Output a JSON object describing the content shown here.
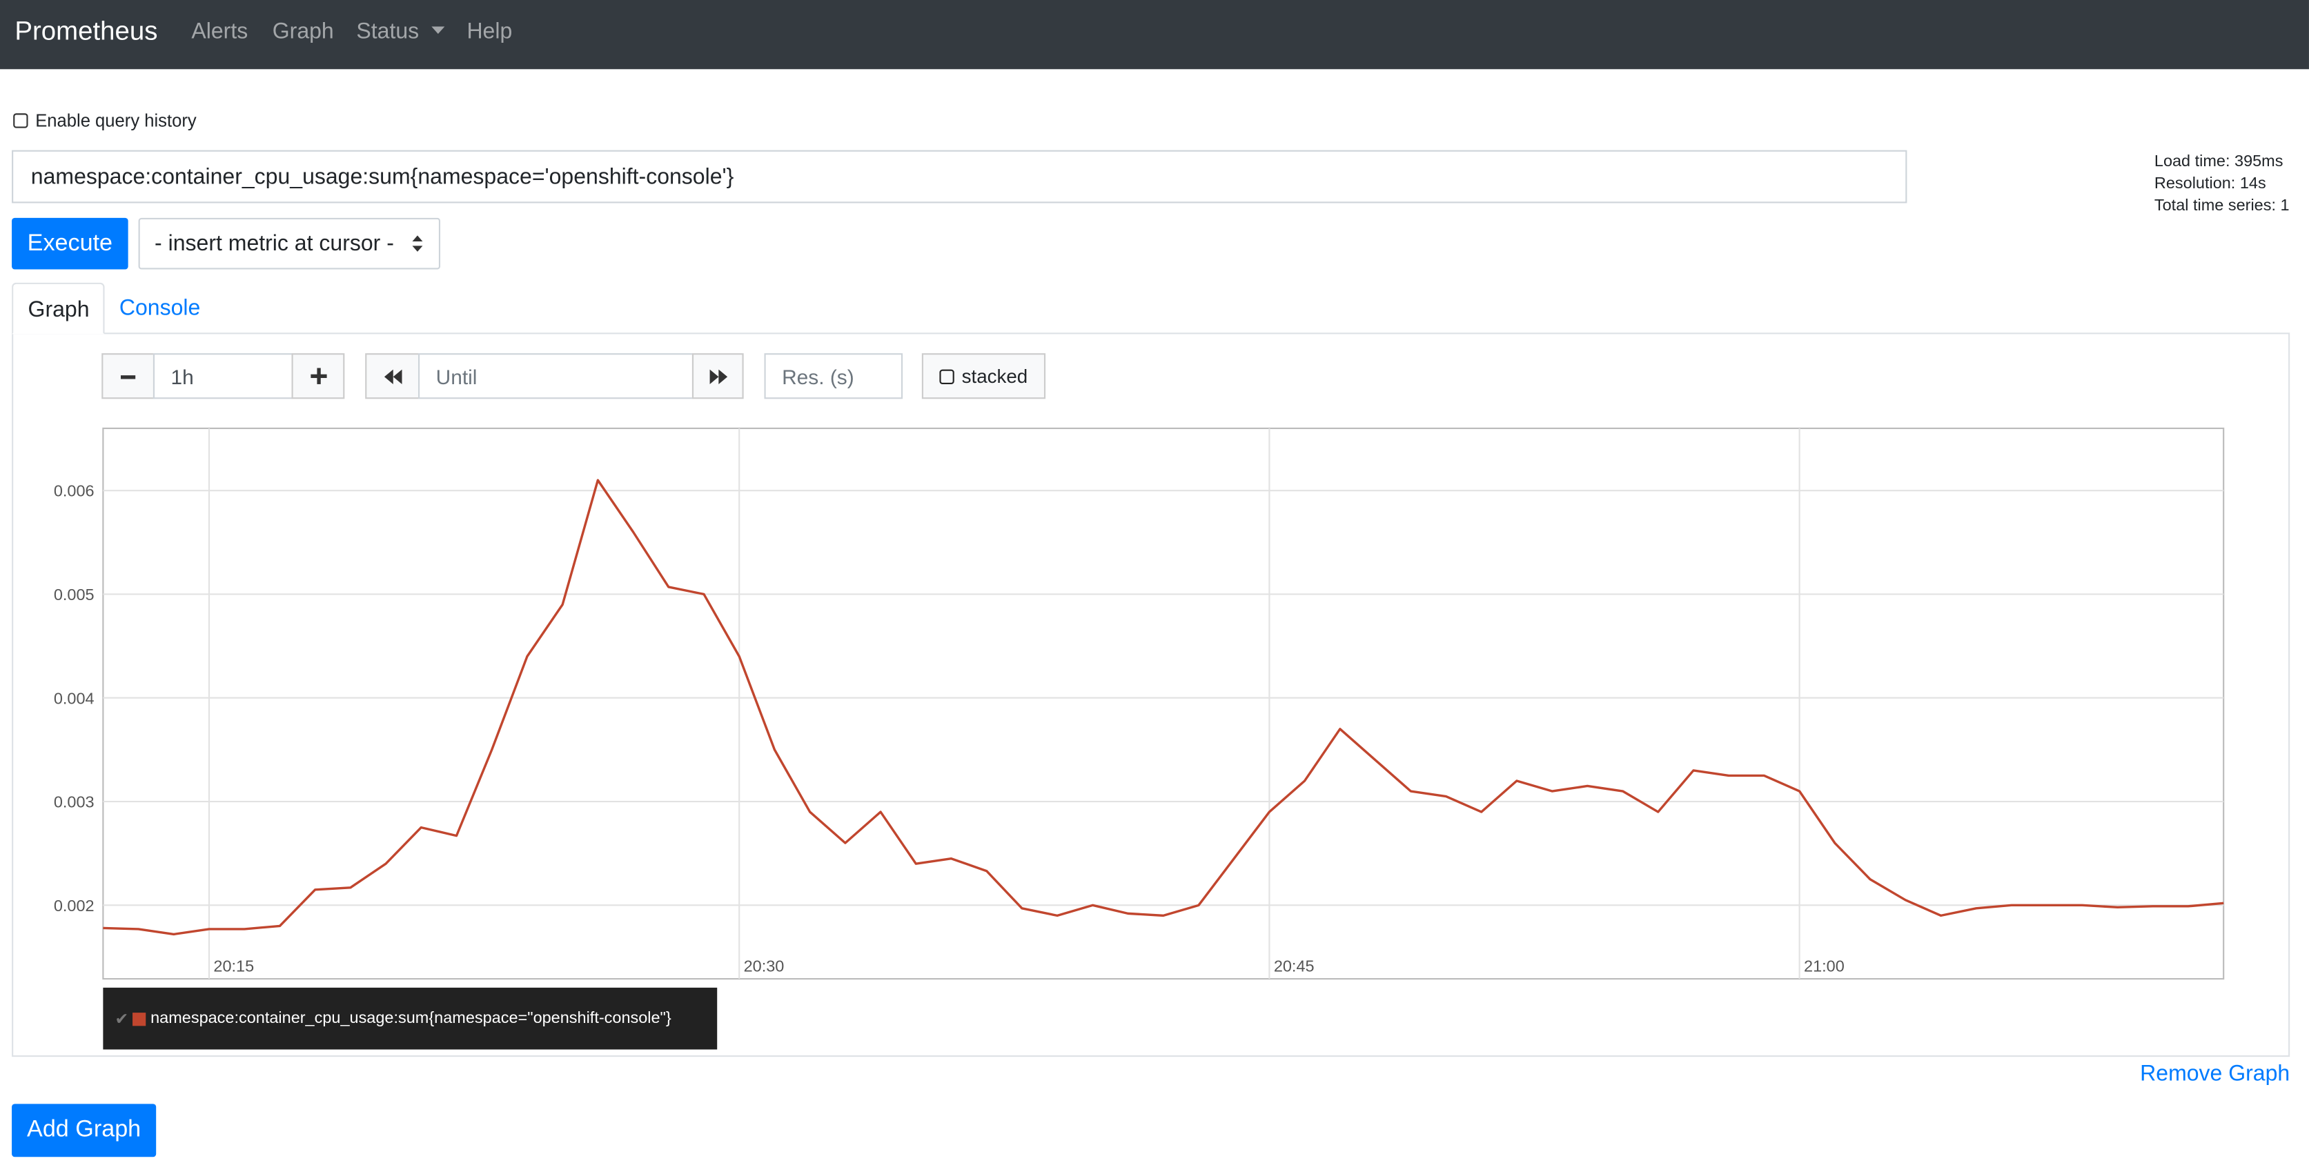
{
  "nav": {
    "brand": "Prometheus",
    "links": [
      "Alerts",
      "Graph",
      "Status",
      "Help"
    ]
  },
  "query_history_label": "Enable query history",
  "query": {
    "expression": "namespace:container_cpu_usage:sum{namespace='openshift-console'}"
  },
  "stats": [
    "Load time: 395ms",
    "Resolution: 14s",
    "Total time series: 1"
  ],
  "execute": "Execute",
  "metric_select": "- insert metric at cursor -",
  "tabs": [
    "Graph",
    "Console"
  ],
  "controls": {
    "range": "1h",
    "until": "Until",
    "resolution": "Res. (s)",
    "stacked": "stacked"
  },
  "chart_data": {
    "type": "line",
    "x": [
      "20:12",
      "20:13",
      "20:14",
      "20:15",
      "20:16",
      "20:17",
      "20:18",
      "20:19",
      "20:20",
      "20:21",
      "20:22",
      "20:23",
      "20:24",
      "20:25",
      "20:26",
      "20:27",
      "20:28",
      "20:29",
      "20:30",
      "20:31",
      "20:32",
      "20:33",
      "20:34",
      "20:35",
      "20:36",
      "20:37",
      "20:38",
      "20:39",
      "20:40",
      "20:41",
      "20:42",
      "20:43",
      "20:44",
      "20:45",
      "20:46",
      "20:47",
      "20:48",
      "20:49",
      "20:50",
      "20:51",
      "20:52",
      "20:53",
      "20:54",
      "20:55",
      "20:56",
      "20:57",
      "20:58",
      "20:59",
      "21:00",
      "21:01",
      "21:02",
      "21:03",
      "21:04",
      "21:05",
      "21:06",
      "21:07",
      "21:08",
      "21:09",
      "21:10",
      "21:11",
      "21:12"
    ],
    "series": [
      {
        "name": "namespace:container_cpu_usage:sum{namespace=\"openshift-console\"}",
        "color": "#c1462e",
        "values": [
          0.00178,
          0.00177,
          0.00172,
          0.00177,
          0.00177,
          0.0018,
          0.00215,
          0.00217,
          0.0024,
          0.00275,
          0.00267,
          0.0035,
          0.0044,
          0.0049,
          0.0061,
          0.0056,
          0.00507,
          0.005,
          0.0044,
          0.0035,
          0.0029,
          0.0026,
          0.0029,
          0.0024,
          0.00245,
          0.00233,
          0.00197,
          0.0019,
          0.002,
          0.00192,
          0.0019,
          0.002,
          0.00245,
          0.0029,
          0.0032,
          0.0037,
          0.0034,
          0.0031,
          0.00305,
          0.0029,
          0.0032,
          0.0031,
          0.00315,
          0.0031,
          0.0029,
          0.0033,
          0.00325,
          0.00325,
          0.0031,
          0.0026,
          0.00225,
          0.00205,
          0.0019,
          0.00197,
          0.002,
          0.002,
          0.002,
          0.00198,
          0.00199,
          0.00199,
          0.00202
        ]
      }
    ],
    "xlim": [
      "20:12",
      "21:12"
    ],
    "xticks": [
      "20:15",
      "20:30",
      "20:45",
      "21:00"
    ],
    "ylim": [
      0.00129,
      0.0066
    ],
    "yticks": [
      0.002,
      0.003,
      0.004,
      0.005,
      0.006
    ],
    "grid": true
  },
  "remove_graph": "Remove Graph",
  "add_graph": "Add Graph"
}
